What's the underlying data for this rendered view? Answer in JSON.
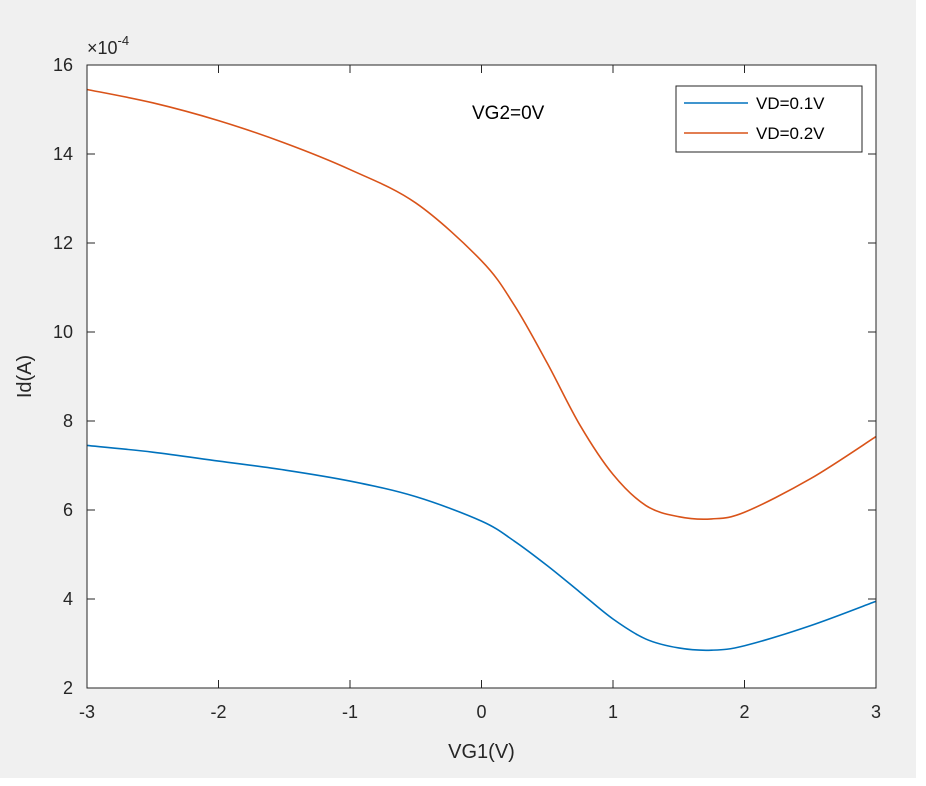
{
  "chart_data": {
    "type": "line",
    "title": "",
    "xlabel": "VG1(V)",
    "ylabel": "Id(A)",
    "exponent_label": "×10",
    "exponent_power": "-4",
    "annotation": "VG2=0V",
    "xlim": [
      -3,
      3
    ],
    "ylim": [
      2,
      16
    ],
    "xticks": [
      -3,
      -2,
      -1,
      0,
      1,
      2,
      3
    ],
    "yticks": [
      2,
      4,
      6,
      8,
      10,
      12,
      14,
      16
    ],
    "xtick_labels": [
      "-3",
      "-2",
      "-1",
      "0",
      "1",
      "2",
      "3"
    ],
    "ytick_labels": [
      "2",
      "4",
      "6",
      "8",
      "10",
      "12",
      "14",
      "16"
    ],
    "grid": false,
    "legend_position": "top-right",
    "series": [
      {
        "name": "VD=0.1V",
        "color": "#0072bd",
        "x": [
          -3,
          -2.5,
          -2,
          -1.5,
          -1,
          -0.5,
          0,
          0.25,
          0.5,
          0.75,
          1,
          1.25,
          1.5,
          1.75,
          2,
          2.5,
          3
        ],
        "y": [
          7.45,
          7.3,
          7.1,
          6.9,
          6.65,
          6.3,
          5.75,
          5.3,
          4.75,
          4.15,
          3.55,
          3.1,
          2.9,
          2.85,
          2.95,
          3.4,
          3.95
        ]
      },
      {
        "name": "VD=0.2V",
        "color": "#d95319",
        "x": [
          -3,
          -2.5,
          -2,
          -1.5,
          -1,
          -0.5,
          0,
          0.25,
          0.5,
          0.75,
          1,
          1.25,
          1.5,
          1.75,
          2,
          2.5,
          3
        ],
        "y": [
          15.45,
          15.15,
          14.75,
          14.25,
          13.65,
          12.9,
          11.6,
          10.6,
          9.3,
          7.9,
          6.8,
          6.1,
          5.85,
          5.8,
          5.95,
          6.7,
          7.65
        ]
      }
    ]
  }
}
